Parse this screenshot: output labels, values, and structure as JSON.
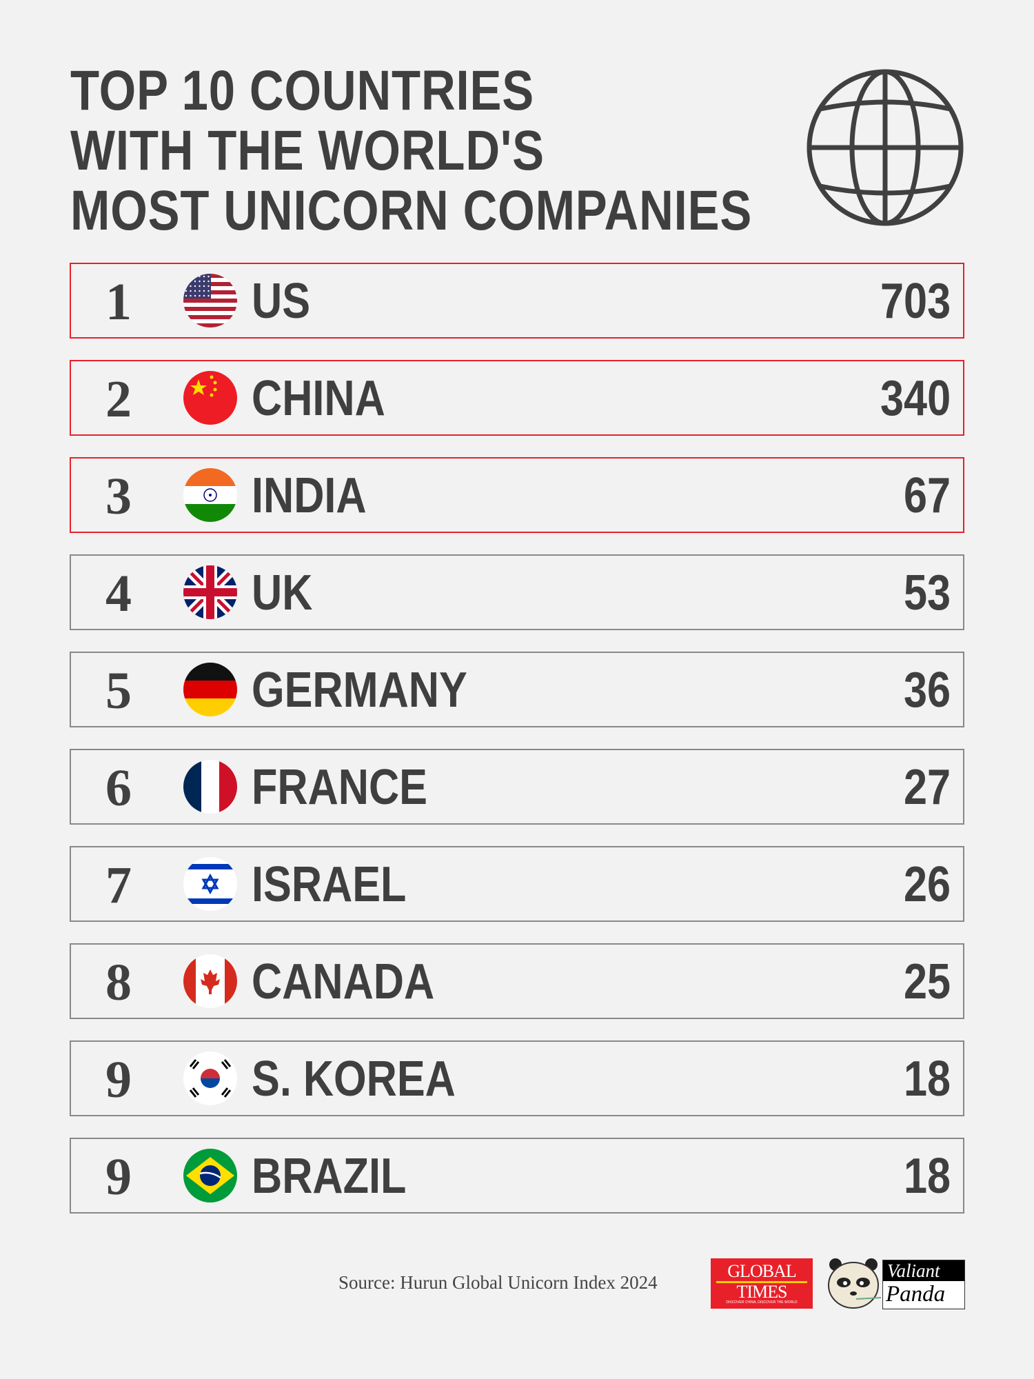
{
  "title": {
    "lines": [
      "TOP 10 COUNTRIES",
      "WITH THE WORLD'S",
      "MOST UNICORN COMPANIES"
    ],
    "icon": "globe-icon"
  },
  "colors": {
    "highlight_border": "#e8202a",
    "default_border": "#888888",
    "text": "#404040",
    "background": "#f2f2f2"
  },
  "rows": [
    {
      "rank": "1",
      "country": "US",
      "value": "703",
      "highlighted": true,
      "flag": "us"
    },
    {
      "rank": "2",
      "country": "CHINA",
      "value": "340",
      "highlighted": true,
      "flag": "cn"
    },
    {
      "rank": "3",
      "country": "INDIA",
      "value": "67",
      "highlighted": true,
      "flag": "in"
    },
    {
      "rank": "4",
      "country": "UK",
      "value": "53",
      "highlighted": false,
      "flag": "uk"
    },
    {
      "rank": "5",
      "country": "GERMANY",
      "value": "36",
      "highlighted": false,
      "flag": "de"
    },
    {
      "rank": "6",
      "country": "FRANCE",
      "value": "27",
      "highlighted": false,
      "flag": "fr"
    },
    {
      "rank": "7",
      "country": "ISRAEL",
      "value": "26",
      "highlighted": false,
      "flag": "il"
    },
    {
      "rank": "8",
      "country": "CANADA",
      "value": "25",
      "highlighted": false,
      "flag": "ca"
    },
    {
      "rank": "9",
      "country": "S. KOREA",
      "value": "18",
      "highlighted": false,
      "flag": "kr"
    },
    {
      "rank": "9",
      "country": "BRAZIL",
      "value": "18",
      "highlighted": false,
      "flag": "br"
    }
  ],
  "footer": {
    "source": "Source: Hurun Global Unicorn Index 2024",
    "logo_global_times": {
      "line1": "GLOBAL",
      "line2": "TIMES",
      "tagline": "DISCOVER CHINA, DISCOVER THE WORLD"
    },
    "logo_valiant_panda": {
      "line1": "Valiant",
      "line2": "Panda"
    }
  }
}
